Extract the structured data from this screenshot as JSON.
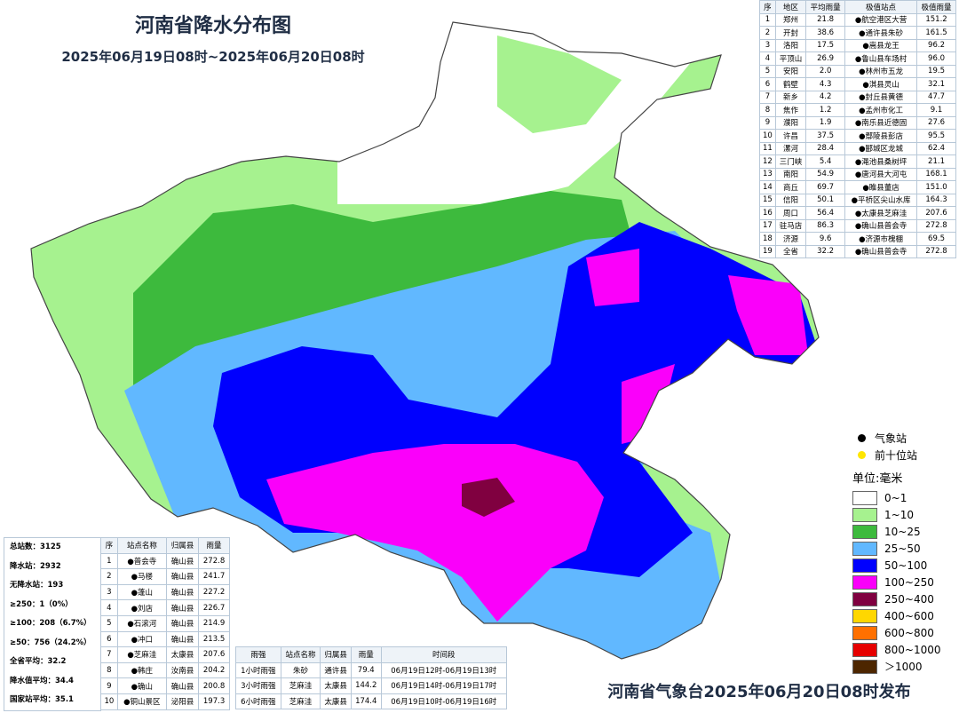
{
  "header": {
    "title": "河南省降水分布图",
    "subtitle": "2025年06月19日08时~2025年06月20日08时"
  },
  "region_table": {
    "columns": [
      "序",
      "地区",
      "平均雨量",
      "极值站点",
      "极值雨量"
    ],
    "rows": [
      [
        "1",
        "郑州",
        "21.8",
        "●航空港区大营",
        "151.2"
      ],
      [
        "2",
        "开封",
        "38.6",
        "●通许县朱砂",
        "161.5"
      ],
      [
        "3",
        "洛阳",
        "17.5",
        "●嵩县龙王",
        "96.2"
      ],
      [
        "4",
        "平顶山",
        "26.9",
        "●鲁山县车场村",
        "96.0"
      ],
      [
        "5",
        "安阳",
        "2.0",
        "●林州市五龙",
        "19.5"
      ],
      [
        "6",
        "鹤壁",
        "4.3",
        "●淇县灵山",
        "32.1"
      ],
      [
        "7",
        "新乡",
        "4.2",
        "●封丘县黄德",
        "47.7"
      ],
      [
        "8",
        "焦作",
        "1.2",
        "●孟州市化工",
        "9.1"
      ],
      [
        "9",
        "濮阳",
        "1.9",
        "●南乐县近德固",
        "27.6"
      ],
      [
        "10",
        "许昌",
        "37.5",
        "●鄢陵县彭店",
        "95.5"
      ],
      [
        "11",
        "漯河",
        "28.4",
        "●郾城区龙城",
        "62.4"
      ],
      [
        "12",
        "三门峡",
        "5.4",
        "●渑池县桑树坪",
        "21.1"
      ],
      [
        "13",
        "南阳",
        "54.9",
        "●唐河县大河屯",
        "168.1"
      ],
      [
        "14",
        "商丘",
        "69.7",
        "●睢县董店",
        "151.0"
      ],
      [
        "15",
        "信阳",
        "50.1",
        "●平桥区尖山水库",
        "164.3"
      ],
      [
        "16",
        "周口",
        "56.4",
        "●太康县芝麻洼",
        "207.6"
      ],
      [
        "17",
        "驻马店",
        "86.3",
        "●确山县普会寺",
        "272.8"
      ],
      [
        "18",
        "济源",
        "9.6",
        "●济源市槐棚",
        "69.5"
      ],
      [
        "19",
        "全省",
        "32.2",
        "●确山县普会寺",
        "272.8"
      ]
    ]
  },
  "stats": [
    "总站数：3125",
    "降水站：2932",
    "无降水站：193",
    "≥250：1（0%）",
    "≥100：208（6.7%）",
    "≥50：756（24.2%）",
    "全省平均：32.2",
    "降水值平均：34.4",
    "国家站平均：35.1"
  ],
  "top_table": {
    "columns": [
      "序",
      "站点名称",
      "归属县",
      "雨量"
    ],
    "rows": [
      [
        "1",
        "●普会寺",
        "确山县",
        "272.8"
      ],
      [
        "2",
        "●马楼",
        "确山县",
        "241.7"
      ],
      [
        "3",
        "●蓬山",
        "确山县",
        "227.2"
      ],
      [
        "4",
        "●刘店",
        "确山县",
        "226.7"
      ],
      [
        "5",
        "●石滚河",
        "确山县",
        "214.9"
      ],
      [
        "6",
        "●冲口",
        "确山县",
        "213.5"
      ],
      [
        "7",
        "●芝麻洼",
        "太康县",
        "207.6"
      ],
      [
        "8",
        "●韩庄",
        "汝南县",
        "204.2"
      ],
      [
        "9",
        "●确山",
        "确山县",
        "200.8"
      ],
      [
        "10",
        "●铜山景区",
        "泌阳县",
        "197.3"
      ]
    ]
  },
  "intensity_table": {
    "columns": [
      "雨强",
      "站点名称",
      "归属县",
      "雨量",
      "时间段"
    ],
    "rows": [
      [
        "1小时雨强",
        "朱砂",
        "通许县",
        "79.4",
        "06月19日12时-06月19日13时"
      ],
      [
        "3小时雨强",
        "芝麻洼",
        "太康县",
        "144.2",
        "06月19日14时-06月19日17时"
      ],
      [
        "6小时雨强",
        "芝麻洼",
        "太康县",
        "174.4",
        "06月19日10时-06月19日16时"
      ]
    ]
  },
  "legend": {
    "stations": [
      {
        "label": "气象站",
        "color": "#000000"
      },
      {
        "label": "前十位站",
        "color": "#ffe600"
      }
    ],
    "unit": "单位:毫米",
    "items": [
      {
        "label": "0~1",
        "color": "#ffffff"
      },
      {
        "label": "1~10",
        "color": "#a6f28f"
      },
      {
        "label": "10~25",
        "color": "#3dba3d"
      },
      {
        "label": "25~50",
        "color": "#61b8ff"
      },
      {
        "label": "50~100",
        "color": "#0000fe"
      },
      {
        "label": "100~250",
        "color": "#fa00fa"
      },
      {
        "label": "250~400",
        "color": "#800040"
      },
      {
        "label": "400~600",
        "color": "#ffd700"
      },
      {
        "label": "600~800",
        "color": "#ff7000"
      },
      {
        "label": "800~1000",
        "color": "#e60000"
      },
      {
        "label": "＞1000",
        "color": "#4d2600"
      }
    ]
  },
  "footer": "河南省气象台2025年06月20日08时发布"
}
